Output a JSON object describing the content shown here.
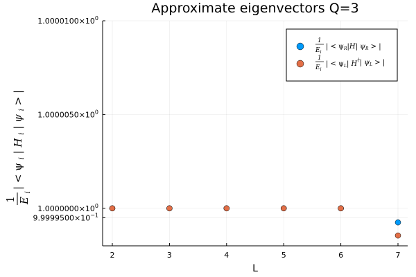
{
  "chart_data": {
    "type": "scatter",
    "title": "Approximate eigenvectors Q=3",
    "xlabel": "L",
    "ylabel_parts": [
      "1",
      "E",
      "i",
      "| < ψ",
      "i",
      "| H",
      "i",
      "| ψ",
      "i",
      " > |"
    ],
    "xlim": [
      1.83,
      7.17
    ],
    "ylim": [
      0.999998,
      1.00001
    ],
    "x_ticks": [
      2,
      3,
      4,
      5,
      6,
      7
    ],
    "x_tick_labels": [
      "2",
      "3",
      "4",
      "5",
      "6",
      "7"
    ],
    "y_ticks": [
      0.9999995,
      1.0,
      1.000005,
      1.00001
    ],
    "y_tick_labels": [
      {
        "mantissa": "9.9999500",
        "exponent": "−1"
      },
      {
        "mantissa": "1.0000000",
        "exponent": "0"
      },
      {
        "mantissa": "1.0000050",
        "exponent": "0"
      },
      {
        "mantissa": "1.0000100",
        "exponent": "0"
      }
    ],
    "grid": true,
    "legend_position": "top-right",
    "series": [
      {
        "legend": {
          "num": "1",
          "den": "E",
          "den_sub": "i",
          "text": "| < ψ",
          "s1": "R",
          "mid": "|H| ψ",
          "s2": "R",
          "end": " > |"
        },
        "color": "#009AFA",
        "x": [
          2,
          3,
          4,
          5,
          6,
          7
        ],
        "y": [
          1.0,
          1.0,
          1.0,
          1.0,
          1.0,
          0.99999925
        ]
      },
      {
        "legend": {
          "num": "1",
          "den": "E",
          "den_sub": "i",
          "text": "| < ψ",
          "s1": "L",
          "mid": "| H",
          "sup": "†",
          "mid2": "| ψ",
          "s2": "L",
          "end": " > |"
        },
        "color": "#E36F47",
        "x": [
          2,
          3,
          4,
          5,
          6,
          7
        ],
        "y": [
          1.0,
          1.0,
          1.0,
          1.0,
          1.0,
          0.99999855
        ]
      }
    ]
  }
}
